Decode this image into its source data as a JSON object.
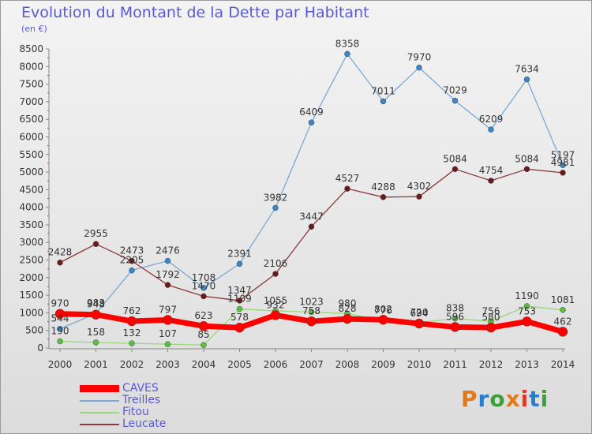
{
  "title": "Evolution du Montant de la Dette par Habitant",
  "unit": "(en €)",
  "logo": {
    "text": "Proxiti",
    "colors": [
      "#e07a1a",
      "#2a7dc8",
      "#3aa03a",
      "#e07a1a",
      "#d93a2a",
      "#2a7dc8",
      "#3aa03a"
    ]
  },
  "chart_data": {
    "type": "line",
    "title": "Evolution du Montant de la Dette par Habitant",
    "ylabel": "(en €)",
    "x": [
      "2000",
      "2001",
      "2002",
      "2003",
      "2004",
      "2005",
      "2006",
      "2007",
      "2008",
      "2009",
      "2010",
      "2011",
      "2012",
      "2013",
      "2014"
    ],
    "yticks": [
      0,
      500,
      1000,
      1500,
      2000,
      2500,
      3000,
      3500,
      4000,
      4500,
      5000,
      5500,
      6000,
      6500,
      7000,
      7500,
      8000,
      8500
    ],
    "ylim": [
      0,
      8500
    ],
    "grid": false,
    "legend_position": "bottom-left",
    "series": [
      {
        "name": "CAVES",
        "color": "#ff0000",
        "marker": "#ff0000",
        "width": 7,
        "r": 6,
        "values": [
          970,
          948,
          762,
          797,
          623,
          578,
          932,
          758,
          828,
          802,
          694,
          596,
          580,
          753,
          462
        ],
        "labels": [
          "970",
          "948",
          "762",
          "797",
          "623",
          "578",
          "932",
          "758",
          "828",
          "802",
          "694",
          "596",
          "580",
          "753",
          "462"
        ]
      },
      {
        "name": "Treilles",
        "color": "#7aa8d8",
        "marker": "#3a86c8",
        "width": 1.3,
        "r": 3.5,
        "values": [
          544,
          983,
          2205,
          2476,
          1708,
          2391,
          3982,
          6409,
          8358,
          7011,
          7970,
          7029,
          6209,
          7634,
          5197
        ],
        "labels": [
          "544",
          "983",
          "2205",
          "2476",
          "1708",
          "2391",
          "3982",
          "6409",
          "8358",
          "7011",
          "7970",
          "7029",
          "6209",
          "7634",
          "5197"
        ]
      },
      {
        "name": "Fitou",
        "color": "#98d878",
        "marker": "#5ac040",
        "width": 1.3,
        "r": 3.5,
        "values": [
          190,
          158,
          132,
          107,
          85,
          1109,
          1055,
          1023,
          980,
          776,
          720,
          838,
          756,
          1190,
          1081
        ],
        "labels": [
          "190",
          "158",
          "132",
          "107",
          "85",
          "1109",
          "1055",
          "1023",
          "980",
          "776",
          "720",
          "838",
          "756",
          "1190",
          "1081"
        ]
      },
      {
        "name": "Leucate",
        "color": "#8a3a3a",
        "marker": "#6a1a1a",
        "width": 1.3,
        "r": 3.5,
        "values": [
          2428,
          2955,
          2473,
          1792,
          1470,
          1347,
          2106,
          3447,
          4527,
          4288,
          4302,
          5084,
          4754,
          5084,
          4981
        ],
        "labels": [
          "2428",
          "2955",
          "2473",
          "1792",
          "1470",
          "1347",
          "2106",
          "3447",
          "4527",
          "4288",
          "4302",
          "5084",
          "4754",
          "5084",
          "4981"
        ]
      }
    ]
  }
}
